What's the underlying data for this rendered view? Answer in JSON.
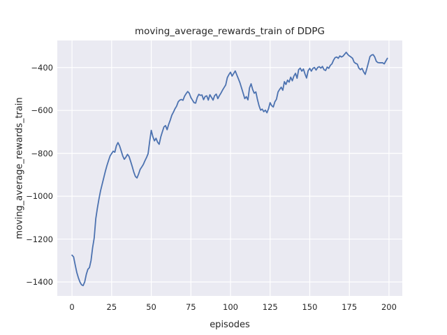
{
  "chart_data": {
    "type": "line",
    "title": "moving_average_rewards_train of DDPG",
    "xlabel": "episodes",
    "ylabel": "moving_average_rewards_train",
    "grid": true,
    "legend": "none",
    "plot_background": "#eaeaf2",
    "grid_color": "#ffffff",
    "line_color": "#4c72b0",
    "text_color": "#262626",
    "xlim": [
      -9.3,
      208.4
    ],
    "ylim": [
      -1465,
      -274
    ],
    "xticks": {
      "values": [
        0,
        25,
        50,
        75,
        100,
        125,
        150,
        175,
        200
      ],
      "labels": [
        "0",
        "25",
        "50",
        "75",
        "100",
        "125",
        "150",
        "175",
        "200"
      ]
    },
    "yticks": {
      "values": [
        -400,
        -600,
        -800,
        -1000,
        -1200,
        -1400
      ],
      "labels": [
        "−400",
        "−600",
        "−800",
        "−1000",
        "−1200",
        "−1400"
      ]
    },
    "series": [
      {
        "name": "moving_average_rewards_train",
        "x_start": 0,
        "x_step": 1,
        "y": [
          -1275,
          -1283,
          -1320,
          -1355,
          -1380,
          -1400,
          -1413,
          -1417,
          -1400,
          -1365,
          -1341,
          -1333,
          -1300,
          -1240,
          -1195,
          -1105,
          -1056,
          -1013,
          -975,
          -945,
          -915,
          -885,
          -858,
          -835,
          -813,
          -801,
          -790,
          -795,
          -765,
          -750,
          -765,
          -788,
          -812,
          -828,
          -818,
          -805,
          -815,
          -838,
          -862,
          -888,
          -908,
          -915,
          -897,
          -875,
          -864,
          -852,
          -835,
          -820,
          -802,
          -745,
          -693,
          -722,
          -742,
          -730,
          -748,
          -758,
          -724,
          -700,
          -677,
          -671,
          -690,
          -665,
          -645,
          -622,
          -608,
          -592,
          -580,
          -560,
          -552,
          -549,
          -553,
          -534,
          -522,
          -512,
          -520,
          -540,
          -552,
          -564,
          -566,
          -540,
          -525,
          -530,
          -528,
          -550,
          -535,
          -532,
          -552,
          -527,
          -539,
          -552,
          -531,
          -524,
          -545,
          -531,
          -519,
          -505,
          -493,
          -481,
          -447,
          -433,
          -422,
          -440,
          -428,
          -416,
          -435,
          -453,
          -472,
          -496,
          -520,
          -545,
          -536,
          -551,
          -495,
          -476,
          -503,
          -520,
          -514,
          -549,
          -578,
          -599,
          -594,
          -606,
          -599,
          -611,
          -592,
          -564,
          -578,
          -584,
          -560,
          -548,
          -514,
          -502,
          -492,
          -506,
          -466,
          -479,
          -459,
          -468,
          -445,
          -462,
          -440,
          -427,
          -450,
          -410,
          -403,
          -417,
          -407,
          -430,
          -449,
          -415,
          -404,
          -417,
          -404,
          -400,
          -412,
          -400,
          -396,
          -403,
          -395,
          -410,
          -414,
          -398,
          -404,
          -390,
          -383,
          -366,
          -354,
          -351,
          -357,
          -346,
          -351,
          -347,
          -338,
          -329,
          -339,
          -346,
          -351,
          -357,
          -375,
          -381,
          -384,
          -403,
          -410,
          -404,
          -420,
          -432,
          -406,
          -378,
          -349,
          -342,
          -340,
          -351,
          -371,
          -377,
          -378,
          -378,
          -378,
          -383,
          -370,
          -357
        ]
      }
    ]
  }
}
